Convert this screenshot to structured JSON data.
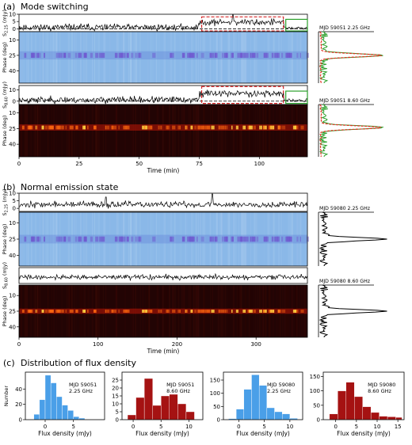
{
  "panels": {
    "a": {
      "label": "(a)",
      "title": "Mode switching"
    },
    "b": {
      "label": "(b)",
      "title": "Normal emission state"
    },
    "c": {
      "label": "(c)",
      "title": "Distribution of flux density"
    }
  },
  "colors": {
    "line": "#000000",
    "dash": "#000000",
    "highlight_red": "#d62728",
    "highlight_green": "#2ca02c",
    "hist_blue": "#4a9fe8",
    "hist_red": "#a51212",
    "profile_green": "#2ca02c",
    "profile_red": "#e03020",
    "heat_blue_bg": "#8ab8e8",
    "heat_blue_band": "#5c7ad8",
    "heat_dark_bg": "#220404",
    "heat_hot": "#ff6a10"
  },
  "chart_data": [
    {
      "id": "a-225-flux",
      "type": "line",
      "ylabel": "S",
      "ylabel_sub": "2.25",
      "ylabel_unit": " (mJy)",
      "ylim": [
        -2,
        10
      ],
      "yticks": [
        0,
        5,
        10
      ],
      "xlim": [
        0,
        120
      ],
      "baseline": 0,
      "seed": 11,
      "segments": [
        {
          "x0": 0,
          "x1": 75,
          "mean": 1.0,
          "sd": 1.6
        },
        {
          "x0": 75,
          "x1": 110,
          "mean": 4.5,
          "sd": 1.6
        },
        {
          "x0": 110,
          "x1": 120,
          "mean": 0.5,
          "sd": 0.8
        }
      ],
      "spikes": [
        {
          "x": 89,
          "y": 9.5
        }
      ],
      "boxes": [
        {
          "x0": 76,
          "x1": 110,
          "y0": -1.5,
          "y1": 8.2,
          "color": "red",
          "style": "dashed"
        },
        {
          "x0": 111,
          "x1": 120,
          "y0": -1.5,
          "y1": 6.5,
          "color": "green",
          "style": "solid"
        }
      ]
    },
    {
      "id": "a-225-heat",
      "type": "heatmap",
      "ylabel": "Phase (deg)",
      "ylim": [
        52,
        2
      ],
      "yticks": [
        10,
        25,
        40
      ],
      "xlim": [
        0,
        120
      ],
      "palette": "blue",
      "band_center": 25,
      "band_width": 4
    },
    {
      "id": "a-225-profile",
      "type": "line",
      "annotation": "MJD 59051   2.25 GHz",
      "profile_center": 25,
      "profile_colors": [
        "green",
        "red"
      ]
    },
    {
      "id": "a-860-flux",
      "type": "line",
      "ylabel": "S",
      "ylabel_sub": "8.60",
      "ylabel_unit": " (mJy)",
      "ylim": [
        -3,
        14
      ],
      "yticks": [
        0,
        10
      ],
      "xlim": [
        0,
        120
      ],
      "baseline": 0,
      "seed": 23,
      "segments": [
        {
          "x0": 0,
          "x1": 75,
          "mean": 1.2,
          "sd": 2.0
        },
        {
          "x0": 75,
          "x1": 110,
          "mean": 7.0,
          "sd": 2.2
        },
        {
          "x0": 110,
          "x1": 120,
          "mean": 0.5,
          "sd": 1.0
        }
      ],
      "spikes": [],
      "boxes": [
        {
          "x0": 76,
          "x1": 110,
          "y0": -2,
          "y1": 13,
          "color": "red",
          "style": "dashed"
        },
        {
          "x0": 111,
          "x1": 120,
          "y0": -2,
          "y1": 9,
          "color": "green",
          "style": "solid"
        }
      ]
    },
    {
      "id": "a-860-heat",
      "type": "heatmap",
      "ylabel": "Phase (deg)",
      "ylim": [
        52,
        2
      ],
      "yticks": [
        10,
        25,
        40
      ],
      "xlim": [
        0,
        120
      ],
      "xticks": [
        0,
        25,
        50,
        75,
        100
      ],
      "xlabel": "Time (min)",
      "palette": "hot",
      "band_center": 24,
      "band_width": 3
    },
    {
      "id": "a-860-profile",
      "type": "line",
      "annotation": "MJD 59051   8.60 GHz",
      "profile_center": 24,
      "profile_colors": [
        "green",
        "red"
      ]
    },
    {
      "id": "b-225-flux",
      "type": "line",
      "ylabel": "S",
      "ylabel_sub": "2.25",
      "ylabel_unit": " (mJy)",
      "ylim": [
        -2,
        10
      ],
      "yticks": [
        0,
        5,
        10
      ],
      "xlim": [
        0,
        365
      ],
      "seed": 37,
      "segments": [
        {
          "x0": 0,
          "x1": 365,
          "mean": 2.5,
          "sd": 1.4
        }
      ],
      "spikes": [
        {
          "x": 245,
          "y": 9.5
        },
        {
          "x": 110,
          "y": 7.5
        }
      ],
      "boxes": []
    },
    {
      "id": "b-225-heat",
      "type": "heatmap",
      "ylabel": "Phase (deg)",
      "ylim": [
        50,
        0
      ],
      "yticks": [
        10,
        25,
        40
      ],
      "xlim": [
        0,
        365
      ],
      "palette": "blue",
      "band_center": 25,
      "band_width": 4
    },
    {
      "id": "b-225-profile",
      "type": "line",
      "annotation": "MJD 59080   2.25 GHz",
      "profile_center": 25,
      "profile_colors": [
        "black"
      ]
    },
    {
      "id": "b-860-flux",
      "type": "line",
      "ylabel": "S",
      "ylabel_sub": "8.60",
      "ylabel_unit": " (mJy)",
      "ylim": [
        -3,
        12
      ],
      "yticks": [],
      "xlim": [
        0,
        365
      ],
      "seed": 41,
      "segments": [
        {
          "x0": 0,
          "x1": 365,
          "mean": 3.0,
          "sd": 1.6
        }
      ],
      "spikes": [],
      "boxes": []
    },
    {
      "id": "b-860-heat",
      "type": "heatmap",
      "ylabel": "Phase (deg)",
      "ylim": [
        50,
        0
      ],
      "yticks": [
        10,
        25,
        40
      ],
      "xlim": [
        0,
        365
      ],
      "xticks": [
        0,
        100,
        200,
        300
      ],
      "xlabel": "Time (min)",
      "palette": "hot",
      "band_center": 25,
      "band_width": 2.5
    },
    {
      "id": "b-860-profile",
      "type": "line",
      "annotation": "MJD 59080   8.60 GHz",
      "profile_center": 25,
      "profile_colors": [
        "black"
      ]
    },
    {
      "id": "hist-1",
      "type": "bar",
      "color": "blue",
      "ylabel": "Number",
      "xlabel": "Flux density (mJy)",
      "annotation": [
        "MJD 59051",
        "2.25 GHz"
      ],
      "xlim": [
        -3.5,
        10.5
      ],
      "ylim": [
        0,
        62
      ],
      "xticks": [
        0,
        5
      ],
      "yticks": [
        0,
        20,
        40
      ],
      "bin_edges": [
        -2,
        -1,
        0,
        1,
        2,
        3,
        4,
        5,
        6,
        7
      ],
      "values": [
        7,
        26,
        58,
        48,
        30,
        19,
        12,
        4,
        2
      ]
    },
    {
      "id": "hist-2",
      "type": "bar",
      "color": "red",
      "xlabel": "Flux density (mJy)",
      "annotation": [
        "MJD 59051",
        "8.60 GHz"
      ],
      "xlim": [
        -2,
        12.5
      ],
      "ylim": [
        0,
        30
      ],
      "xticks": [
        0,
        5,
        10
      ],
      "yticks": [
        0,
        5,
        10,
        15,
        20,
        25
      ],
      "bin_edges": [
        -1,
        0.5,
        2,
        3.5,
        5,
        6.5,
        8,
        9.5,
        11
      ],
      "values": [
        3,
        14,
        26,
        9,
        15,
        16,
        10,
        5
      ]
    },
    {
      "id": "hist-3",
      "type": "bar",
      "color": "blue",
      "xlabel": "Flux density (mJy)",
      "annotation": [
        "MJD 59080",
        "2.25 GHz"
      ],
      "xlim": [
        -3,
        12.5
      ],
      "ylim": [
        0,
        180
      ],
      "xticks": [
        0,
        5,
        10
      ],
      "yticks": [
        0,
        50,
        100,
        150
      ],
      "bin_edges": [
        -2,
        -0.5,
        1,
        2.5,
        4,
        5.5,
        7,
        8.5,
        10,
        11.5
      ],
      "values": [
        4,
        40,
        115,
        170,
        130,
        45,
        30,
        22,
        5
      ]
    },
    {
      "id": "hist-4",
      "type": "bar",
      "color": "red",
      "xlabel": "Flux density (mJy)",
      "annotation": [
        "MJD 59080",
        "8.60 GHz"
      ],
      "xlim": [
        -3,
        16.5
      ],
      "ylim": [
        0,
        165
      ],
      "xticks": [
        0,
        5,
        10,
        15
      ],
      "yticks": [
        0,
        50,
        100,
        150
      ],
      "bin_edges": [
        -1.5,
        0.5,
        2.5,
        4.5,
        6.5,
        8.5,
        10.5,
        12.5,
        14.5,
        16
      ],
      "values": [
        20,
        100,
        130,
        80,
        45,
        25,
        12,
        10,
        8
      ]
    }
  ]
}
